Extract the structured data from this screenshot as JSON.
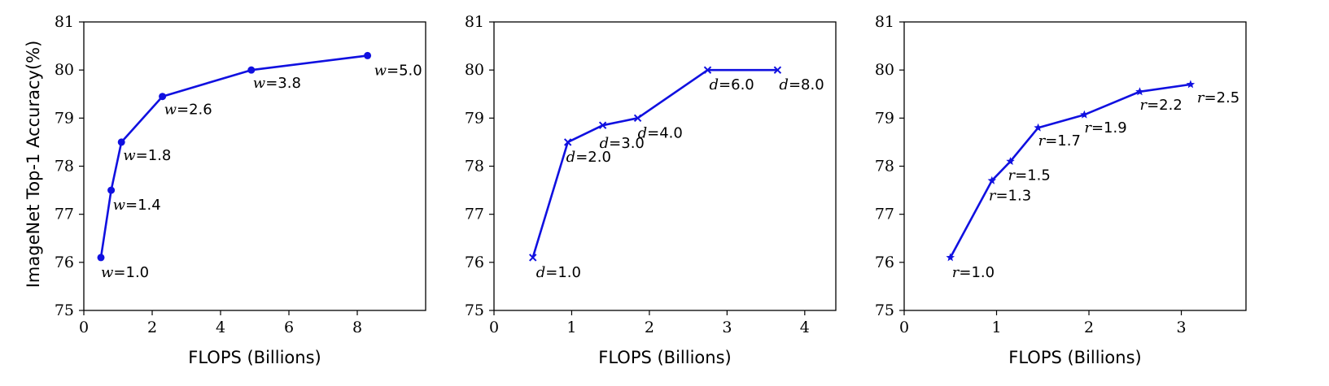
{
  "figure": {
    "ylabel": "ImageNet Top-1 Accuracy(%)",
    "xlabel": "FLOPS (Billions)",
    "line_color": "#1010e0"
  },
  "chart_data": [
    {
      "type": "line",
      "xlabel": "FLOPS (Billions)",
      "ylabel": "ImageNet Top-1 Accuracy(%)",
      "xlim": [
        0,
        10
      ],
      "ylim": [
        75,
        81
      ],
      "xticks": [
        "0",
        "2",
        "4",
        "6",
        "8"
      ],
      "yticks": [
        "75",
        "76",
        "77",
        "78",
        "79",
        "80",
        "81"
      ],
      "grid": false,
      "marker": "circle",
      "series": [
        {
          "x": [
            0.5,
            0.8,
            1.1,
            2.3,
            4.9,
            8.3
          ],
          "y": [
            76.1,
            77.5,
            78.5,
            79.45,
            80.0,
            80.3
          ],
          "labels": [
            {
              "var": "w",
              "value": "=1.0"
            },
            {
              "var": "w",
              "value": "=1.4"
            },
            {
              "var": "w",
              "value": "=1.8"
            },
            {
              "var": "w",
              "value": "=2.6"
            },
            {
              "var": "w",
              "value": "=3.8"
            },
            {
              "var": "w",
              "value": "=5.0"
            }
          ]
        }
      ]
    },
    {
      "type": "line",
      "xlabel": "FLOPS (Billions)",
      "ylabel": "",
      "xlim": [
        0,
        4.4
      ],
      "ylim": [
        75,
        81
      ],
      "xticks": [
        "0",
        "1",
        "2",
        "3",
        "4"
      ],
      "yticks": [
        "75",
        "76",
        "77",
        "78",
        "79",
        "80",
        "81"
      ],
      "grid": false,
      "marker": "x",
      "series": [
        {
          "x": [
            0.5,
            0.95,
            1.4,
            1.85,
            2.75,
            3.65
          ],
          "y": [
            76.1,
            78.5,
            78.85,
            79.0,
            80.0,
            80.0
          ],
          "labels": [
            {
              "var": "d",
              "value": "=1.0"
            },
            {
              "var": "d",
              "value": "=2.0"
            },
            {
              "var": "d",
              "value": "=3.0"
            },
            {
              "var": "d",
              "value": "=4.0"
            },
            {
              "var": "d",
              "value": "=6.0"
            },
            {
              "var": "d",
              "value": "=8.0"
            }
          ]
        }
      ]
    },
    {
      "type": "line",
      "xlabel": "FLOPS (Billions)",
      "ylabel": "",
      "xlim": [
        0,
        3.7
      ],
      "ylim": [
        75,
        81
      ],
      "xticks": [
        "0",
        "1",
        "2",
        "3"
      ],
      "yticks": [
        "75",
        "76",
        "77",
        "78",
        "79",
        "80",
        "81"
      ],
      "grid": false,
      "marker": "star",
      "series": [
        {
          "x": [
            0.5,
            0.95,
            1.15,
            1.45,
            1.95,
            2.55,
            3.1
          ],
          "y": [
            76.1,
            77.7,
            78.1,
            78.8,
            79.07,
            79.55,
            79.7
          ],
          "labels": [
            {
              "var": "r",
              "value": "=1.0"
            },
            {
              "var": "r",
              "value": "=1.3"
            },
            {
              "var": "r",
              "value": "=1.5"
            },
            {
              "var": "r",
              "value": "=1.7"
            },
            {
              "var": "r",
              "value": "=1.9"
            },
            {
              "var": "r",
              "value": "=2.2"
            },
            {
              "var": "r",
              "value": "=2.5"
            }
          ]
        }
      ]
    }
  ]
}
